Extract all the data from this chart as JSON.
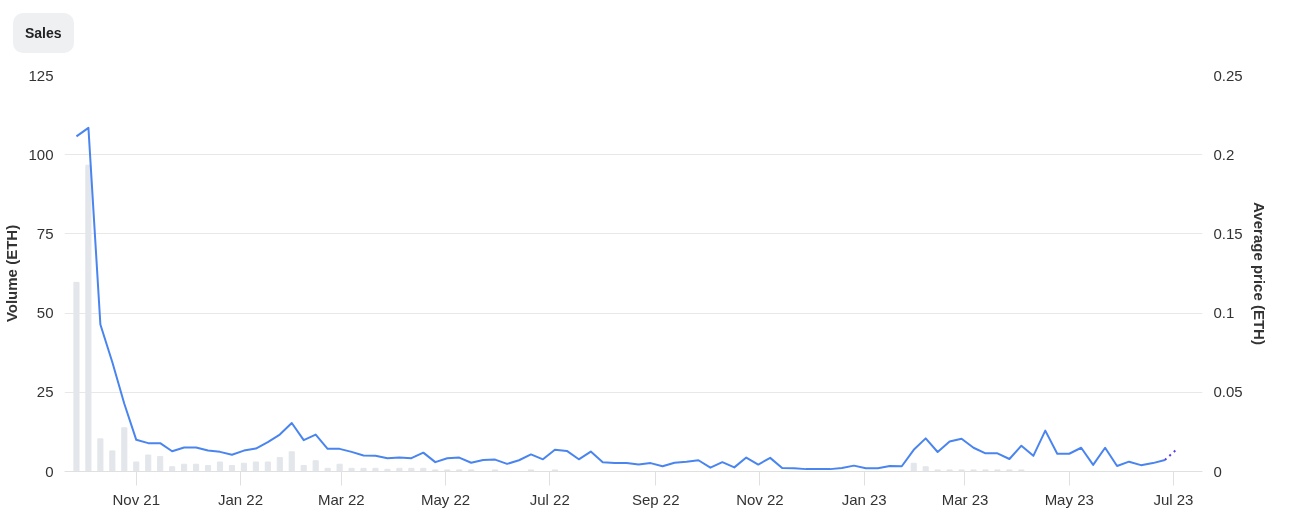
{
  "chart_data": {
    "type": "bar",
    "annotations": [
      "Sales"
    ],
    "ylabel": "Volume (ETH)",
    "y2label": "Average price (ETH)",
    "x": [
      "2021-09-27",
      "2021-10-04",
      "2021-10-11",
      "2021-10-18",
      "2021-10-25",
      "2021-11-01",
      "2021-11-08",
      "2021-11-15",
      "2021-11-22",
      "2021-11-29",
      "2021-12-06",
      "2021-12-13",
      "2021-12-20",
      "2021-12-27",
      "2022-01-03",
      "2022-01-10",
      "2022-01-17",
      "2022-01-24",
      "2022-01-31",
      "2022-02-07",
      "2022-02-14",
      "2022-02-21",
      "2022-02-28",
      "2022-03-07",
      "2022-03-14",
      "2022-03-21",
      "2022-03-28",
      "2022-04-04",
      "2022-04-11",
      "2022-04-18",
      "2022-04-25",
      "2022-05-02",
      "2022-05-09",
      "2022-05-16",
      "2022-05-23",
      "2022-05-30",
      "2022-06-06",
      "2022-06-13",
      "2022-06-20",
      "2022-06-27",
      "2022-07-04",
      "2022-07-11",
      "2022-07-18",
      "2022-07-25",
      "2022-08-01",
      "2022-08-08",
      "2022-08-15",
      "2022-08-22",
      "2022-08-29",
      "2022-09-05",
      "2022-09-12",
      "2022-09-19",
      "2022-09-26",
      "2022-10-03",
      "2022-10-10",
      "2022-10-17",
      "2022-10-24",
      "2022-10-31",
      "2022-11-07",
      "2022-11-14",
      "2022-11-21",
      "2022-11-28",
      "2022-12-05",
      "2022-12-12",
      "2022-12-19",
      "2022-12-26",
      "2023-01-02",
      "2023-01-09",
      "2023-01-16",
      "2023-01-23",
      "2023-01-30",
      "2023-02-06",
      "2023-02-13",
      "2023-02-20",
      "2023-02-27",
      "2023-03-06",
      "2023-03-13",
      "2023-03-20",
      "2023-03-27",
      "2023-04-03",
      "2023-04-10",
      "2023-04-17",
      "2023-04-24",
      "2023-05-01",
      "2023-05-08",
      "2023-05-15",
      "2023-05-22",
      "2023-05-29",
      "2023-06-05",
      "2023-06-12",
      "2023-06-19",
      "2023-06-26"
    ],
    "series": [
      {
        "axis": "y",
        "color": "#e3e6ea",
        "values": [
          59.7,
          96.7,
          10.3,
          6.5,
          13.8,
          3.0,
          5.2,
          4.7,
          1.5,
          2.3,
          2.3,
          1.9,
          3.0,
          1.9,
          2.6,
          3.0,
          3.0,
          4.4,
          6.2,
          1.9,
          3.4,
          1.0,
          2.3,
          1.0,
          1.0,
          1.0,
          0.7,
          1.0,
          1.0,
          1.0,
          0.5,
          0.5,
          0.5,
          0.5,
          0,
          0.5,
          0,
          0,
          0.5,
          0,
          0.5,
          0,
          0,
          0,
          0,
          0,
          0,
          0,
          0,
          0,
          0,
          0,
          0,
          0,
          0,
          0,
          0,
          0,
          0,
          0,
          0,
          0,
          0,
          0,
          0,
          0,
          0,
          0,
          0,
          0,
          2.6,
          1.5,
          0.5,
          0.5,
          0.5,
          0.5,
          0.5,
          0.5,
          0.5,
          0.5,
          0,
          0,
          0,
          0,
          0,
          0,
          0,
          0,
          0,
          0,
          0,
          0
        ]
      },
      {
        "type": "line",
        "axis": "y2",
        "color": "#4a85ef",
        "values": [
          0.2116,
          0.2169,
          0.0928,
          0.069,
          0.0428,
          0.02,
          0.0179,
          0.0179,
          0.0128,
          0.0152,
          0.0152,
          0.0132,
          0.0124,
          0.0106,
          0.0132,
          0.0145,
          0.0185,
          0.0233,
          0.0306,
          0.0198,
          0.0233,
          0.0143,
          0.0143,
          0.0124,
          0.0101,
          0.0099,
          0.0084,
          0.0088,
          0.0084,
          0.0119,
          0.0059,
          0.0084,
          0.0088,
          0.0055,
          0.0073,
          0.0075,
          0.0048,
          0.0071,
          0.0108,
          0.0077,
          0.0137,
          0.013,
          0.0077,
          0.0126,
          0.0059,
          0.0053,
          0.0053,
          0.0044,
          0.0053,
          0.0033,
          0.0055,
          0.0062,
          0.0071,
          0.0024,
          0.0059,
          0.0026,
          0.0088,
          0.0044,
          0.0086,
          0.0022,
          0.002,
          0.0015,
          0.0015,
          0.0015,
          0.0022,
          0.0037,
          0.002,
          0.002,
          0.0035,
          0.0033,
          0.0137,
          0.0209,
          0.0123,
          0.0189,
          0.0207,
          0.015,
          0.0115,
          0.0115,
          0.0079,
          0.0163,
          0.0099,
          0.0258,
          0.0112,
          0.0112,
          0.015,
          0.0042,
          0.015,
          0.0035,
          0.0062,
          0.004,
          0.0053,
          0.0073
        ]
      },
      {
        "type": "line",
        "axis": "y2",
        "color": "#5b3fe6",
        "line_style": "dotted",
        "x": [
          "2023-06-26",
          "2023-07-03"
        ],
        "values": [
          0.0073,
          0.0141
        ]
      }
    ],
    "xlim": [
      "2021-09-20",
      "2023-07-18"
    ],
    "xticks": [
      {
        "value": "2021-11-01",
        "label": "Nov 21"
      },
      {
        "value": "2022-01-01",
        "label": "Jan 22"
      },
      {
        "value": "2022-03-01",
        "label": "Mar 22"
      },
      {
        "value": "2022-05-01",
        "label": "May 22"
      },
      {
        "value": "2022-07-01",
        "label": "Jul 22"
      },
      {
        "value": "2022-09-01",
        "label": "Sep 22"
      },
      {
        "value": "2022-11-01",
        "label": "Nov 22"
      },
      {
        "value": "2023-01-01",
        "label": "Jan 23"
      },
      {
        "value": "2023-03-01",
        "label": "Mar 23"
      },
      {
        "value": "2023-05-01",
        "label": "May 23"
      },
      {
        "value": "2023-07-01",
        "label": "Jul 23"
      }
    ],
    "ylim": [
      0,
      125
    ],
    "yticks": [
      0,
      25,
      50,
      75,
      100,
      125
    ],
    "y2lim": [
      0,
      0.25
    ],
    "y2ticks": [
      0,
      0.05,
      0.1,
      0.15,
      0.2,
      0.25
    ],
    "grid": "y"
  }
}
